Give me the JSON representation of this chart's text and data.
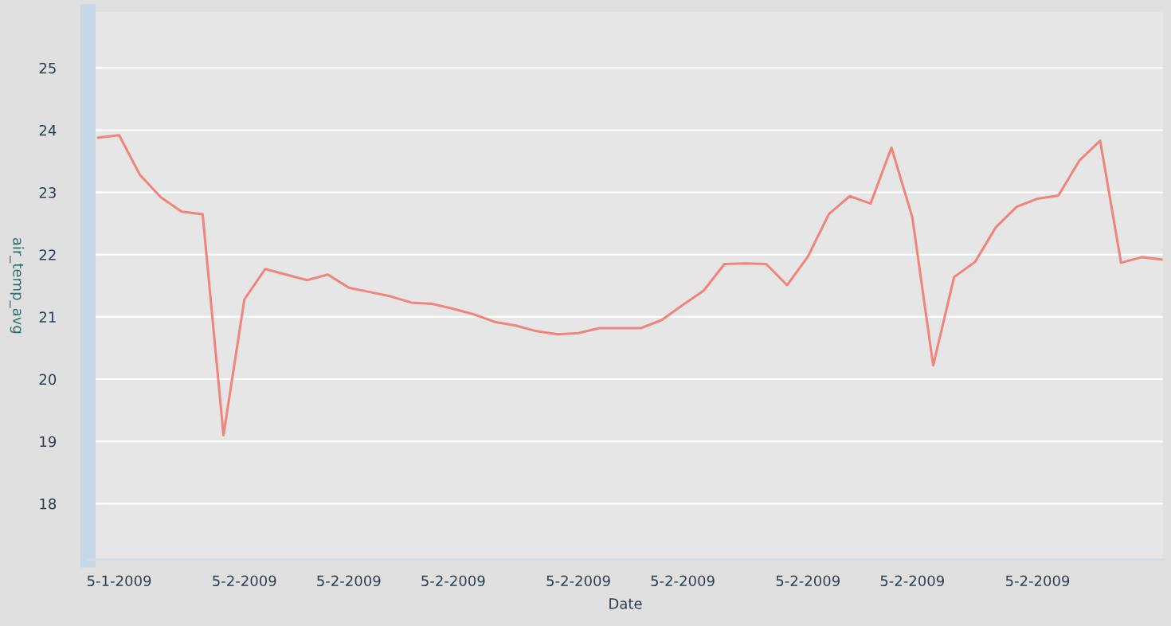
{
  "chart_data": {
    "type": "line",
    "xlabel": "Date",
    "ylabel": "air_temp_avg",
    "categories": [
      null,
      "5-1-2009",
      null,
      null,
      null,
      null,
      null,
      "5-2-2009",
      null,
      null,
      null,
      null,
      "5-2-2009",
      null,
      null,
      null,
      null,
      "5-2-2009",
      null,
      null,
      null,
      null,
      null,
      "5-2-2009",
      null,
      null,
      null,
      null,
      "5-2-2009",
      null,
      null,
      null,
      null,
      null,
      "5-2-2009",
      null,
      null,
      null,
      null,
      "5-2-2009",
      null,
      null,
      null,
      null,
      null,
      "5-2-2009",
      null,
      null,
      null,
      null,
      null,
      null
    ],
    "series": [
      {
        "color": "#f0857c",
        "values": [
          23.88,
          23.92,
          23.28,
          22.92,
          22.69,
          22.65,
          19.1,
          21.28,
          21.77,
          21.68,
          21.59,
          21.68,
          21.47,
          21.4,
          21.33,
          21.23,
          21.21,
          21.13,
          21.04,
          20.92,
          20.86,
          20.77,
          20.72,
          20.74,
          20.82,
          20.82,
          20.82,
          20.95,
          21.19,
          21.42,
          21.85,
          21.86,
          21.85,
          21.51,
          21.97,
          22.65,
          22.94,
          22.82,
          23.72,
          22.6,
          20.22,
          21.64,
          21.88,
          22.44,
          22.77,
          22.9,
          22.95,
          23.51,
          23.83,
          21.87,
          21.96,
          21.92
        ]
      }
    ],
    "ylim": [
      17.1,
      25.9
    ],
    "yticks": [
      18,
      19,
      20,
      21,
      22,
      23,
      24,
      25
    ],
    "grid": "y",
    "marker": "none",
    "line_style": "solid"
  }
}
